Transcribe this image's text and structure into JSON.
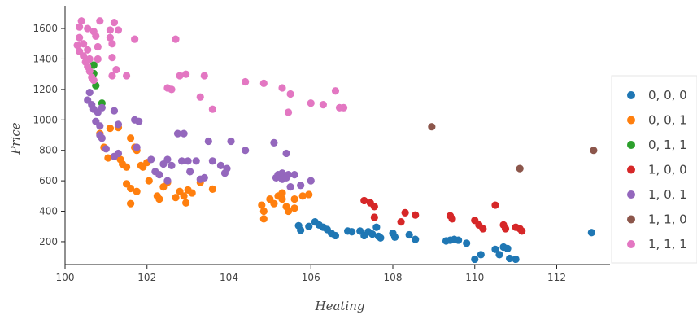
{
  "chart_data": {
    "type": "scatter",
    "xlabel": "Heating",
    "ylabel": "Price",
    "xlim": [
      100,
      113.3
    ],
    "ylim": [
      50,
      1750
    ],
    "xticks": [
      100,
      102,
      104,
      106,
      108,
      110,
      112
    ],
    "yticks": [
      200,
      400,
      600,
      800,
      1000,
      1200,
      1400,
      1600
    ],
    "grid": false,
    "legend_position": "right",
    "series": [
      {
        "name": "0, 0, 0",
        "color": "#1f77b4",
        "points": [
          [
            105.7,
            305
          ],
          [
            105.75,
            275
          ],
          [
            105.95,
            300
          ],
          [
            106.1,
            330
          ],
          [
            106.2,
            310
          ],
          [
            106.3,
            295
          ],
          [
            106.4,
            280
          ],
          [
            106.5,
            255
          ],
          [
            106.6,
            240
          ],
          [
            106.9,
            270
          ],
          [
            107.0,
            265
          ],
          [
            107.2,
            270
          ],
          [
            107.3,
            240
          ],
          [
            107.4,
            265
          ],
          [
            107.5,
            250
          ],
          [
            107.6,
            295
          ],
          [
            107.65,
            235
          ],
          [
            107.7,
            225
          ],
          [
            108.0,
            255
          ],
          [
            108.05,
            230
          ],
          [
            108.4,
            245
          ],
          [
            108.55,
            215
          ],
          [
            109.3,
            205
          ],
          [
            109.4,
            210
          ],
          [
            109.5,
            215
          ],
          [
            109.6,
            210
          ],
          [
            109.8,
            190
          ],
          [
            110.0,
            85
          ],
          [
            110.15,
            115
          ],
          [
            110.5,
            150
          ],
          [
            110.6,
            115
          ],
          [
            110.7,
            165
          ],
          [
            110.8,
            155
          ],
          [
            110.85,
            90
          ],
          [
            111.0,
            85
          ],
          [
            112.85,
            260
          ]
        ]
      },
      {
        "name": "0, 0, 1",
        "color": "#ff7f0e",
        "points": [
          [
            100.85,
            910
          ],
          [
            100.95,
            820
          ],
          [
            101.05,
            750
          ],
          [
            101.1,
            945
          ],
          [
            101.3,
            950
          ],
          [
            101.35,
            740
          ],
          [
            101.4,
            710
          ],
          [
            101.5,
            690
          ],
          [
            101.6,
            880
          ],
          [
            101.7,
            820
          ],
          [
            101.75,
            800
          ],
          [
            101.6,
            550
          ],
          [
            101.6,
            450
          ],
          [
            101.75,
            530
          ],
          [
            101.85,
            700
          ],
          [
            101.9,
            690
          ],
          [
            101.5,
            580
          ],
          [
            102.0,
            720
          ],
          [
            102.05,
            600
          ],
          [
            102.25,
            500
          ],
          [
            102.3,
            480
          ],
          [
            102.4,
            560
          ],
          [
            102.5,
            590
          ],
          [
            102.7,
            490
          ],
          [
            102.8,
            530
          ],
          [
            102.9,
            500
          ],
          [
            103.0,
            540
          ],
          [
            102.95,
            455
          ],
          [
            103.1,
            520
          ],
          [
            103.3,
            590
          ],
          [
            103.6,
            545
          ],
          [
            104.8,
            440
          ],
          [
            104.85,
            400
          ],
          [
            104.85,
            350
          ],
          [
            105.0,
            480
          ],
          [
            105.1,
            450
          ],
          [
            105.2,
            500
          ],
          [
            105.3,
            520
          ],
          [
            105.3,
            480
          ],
          [
            105.4,
            430
          ],
          [
            105.45,
            400
          ],
          [
            105.6,
            420
          ],
          [
            105.6,
            480
          ],
          [
            105.8,
            500
          ],
          [
            105.95,
            510
          ]
        ]
      },
      {
        "name": "0, 1, 1",
        "color": "#2ca02c",
        "points": [
          [
            100.7,
            1360
          ],
          [
            100.7,
            1305
          ],
          [
            100.75,
            1225
          ],
          [
            100.9,
            1110
          ]
        ]
      },
      {
        "name": "1, 0, 0",
        "color": "#d62728",
        "points": [
          [
            107.3,
            470
          ],
          [
            107.45,
            455
          ],
          [
            107.55,
            430
          ],
          [
            107.55,
            360
          ],
          [
            108.2,
            330
          ],
          [
            108.3,
            390
          ],
          [
            108.55,
            375
          ],
          [
            109.4,
            370
          ],
          [
            109.45,
            350
          ],
          [
            110.0,
            340
          ],
          [
            110.1,
            310
          ],
          [
            110.2,
            285
          ],
          [
            110.5,
            440
          ],
          [
            110.7,
            310
          ],
          [
            110.75,
            285
          ],
          [
            111.0,
            295
          ],
          [
            111.15,
            270
          ],
          [
            111.1,
            285
          ]
        ]
      },
      {
        "name": "1, 0, 1",
        "color": "#9467bd",
        "points": [
          [
            100.55,
            1130
          ],
          [
            100.6,
            1180
          ],
          [
            100.65,
            1100
          ],
          [
            100.7,
            1070
          ],
          [
            100.8,
            1050
          ],
          [
            100.9,
            1080
          ],
          [
            100.75,
            990
          ],
          [
            100.85,
            960
          ],
          [
            101.2,
            1060
          ],
          [
            101.3,
            970
          ],
          [
            100.85,
            900
          ],
          [
            100.9,
            880
          ],
          [
            101.0,
            810
          ],
          [
            101.2,
            760
          ],
          [
            101.3,
            780
          ],
          [
            101.7,
            1000
          ],
          [
            101.8,
            990
          ],
          [
            101.75,
            820
          ],
          [
            102.1,
            740
          ],
          [
            102.2,
            660
          ],
          [
            102.3,
            640
          ],
          [
            102.4,
            710
          ],
          [
            102.5,
            740
          ],
          [
            102.6,
            700
          ],
          [
            102.5,
            600
          ],
          [
            102.75,
            910
          ],
          [
            102.9,
            910
          ],
          [
            102.85,
            730
          ],
          [
            103.0,
            730
          ],
          [
            103.05,
            660
          ],
          [
            103.2,
            730
          ],
          [
            103.3,
            610
          ],
          [
            103.5,
            860
          ],
          [
            103.6,
            730
          ],
          [
            103.8,
            700
          ],
          [
            103.95,
            680
          ],
          [
            103.9,
            650
          ],
          [
            104.05,
            860
          ],
          [
            104.4,
            800
          ],
          [
            103.4,
            620
          ],
          [
            105.1,
            850
          ],
          [
            105.15,
            620
          ],
          [
            105.2,
            640
          ],
          [
            105.3,
            650
          ],
          [
            105.4,
            780
          ],
          [
            105.3,
            610
          ],
          [
            105.45,
            640
          ],
          [
            105.6,
            640
          ],
          [
            105.5,
            560
          ],
          [
            105.75,
            570
          ],
          [
            106.0,
            600
          ],
          [
            105.4,
            620
          ]
        ]
      },
      {
        "name": "1, 1, 0",
        "color": "#8c564b",
        "points": [
          [
            108.95,
            955
          ],
          [
            111.1,
            680
          ],
          [
            112.9,
            800
          ]
        ]
      },
      {
        "name": "1, 1, 1",
        "color": "#e377c2",
        "points": [
          [
            100.35,
            1610
          ],
          [
            100.4,
            1650
          ],
          [
            100.55,
            1600
          ],
          [
            100.7,
            1580
          ],
          [
            100.75,
            1550
          ],
          [
            100.85,
            1650
          ],
          [
            101.1,
            1590
          ],
          [
            101.2,
            1640
          ],
          [
            101.3,
            1590
          ],
          [
            101.1,
            1540
          ],
          [
            101.15,
            1500
          ],
          [
            101.7,
            1530
          ],
          [
            102.7,
            1530
          ],
          [
            100.8,
            1480
          ],
          [
            100.3,
            1490
          ],
          [
            100.35,
            1540
          ],
          [
            100.45,
            1500
          ],
          [
            100.35,
            1450
          ],
          [
            100.45,
            1420
          ],
          [
            100.55,
            1460
          ],
          [
            100.6,
            1400
          ],
          [
            100.5,
            1380
          ],
          [
            100.55,
            1350
          ],
          [
            100.6,
            1320
          ],
          [
            100.65,
            1280
          ],
          [
            100.7,
            1260
          ],
          [
            100.8,
            1400
          ],
          [
            101.15,
            1410
          ],
          [
            101.25,
            1330
          ],
          [
            101.15,
            1290
          ],
          [
            101.5,
            1290
          ],
          [
            102.5,
            1210
          ],
          [
            102.6,
            1200
          ],
          [
            102.8,
            1290
          ],
          [
            102.95,
            1300
          ],
          [
            103.4,
            1290
          ],
          [
            103.3,
            1150
          ],
          [
            103.6,
            1070
          ],
          [
            104.4,
            1250
          ],
          [
            104.85,
            1240
          ],
          [
            105.3,
            1210
          ],
          [
            105.5,
            1170
          ],
          [
            105.45,
            1050
          ],
          [
            106.0,
            1110
          ],
          [
            106.3,
            1100
          ],
          [
            106.6,
            1190
          ],
          [
            106.7,
            1080
          ],
          [
            106.8,
            1080
          ]
        ]
      }
    ]
  }
}
